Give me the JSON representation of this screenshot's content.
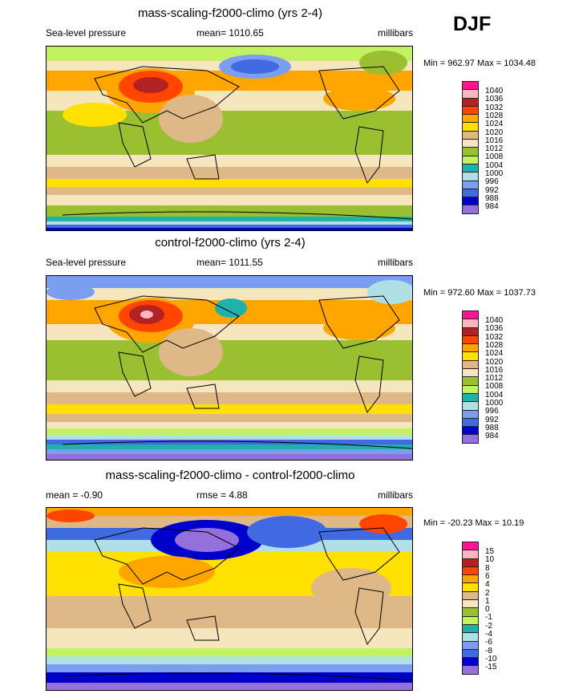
{
  "season": "DJF",
  "colors": [
    "#ff1493",
    "#ffb6c1",
    "#b22222",
    "#ff4500",
    "#ffa500",
    "#ffe000",
    "#deb887",
    "#f5e6c0",
    "#9abf30",
    "#c3f260",
    "#20b2aa",
    "#b0e0e6",
    "#7b9ef0",
    "#4169e1",
    "#0000cd",
    "#9370db"
  ],
  "panels": [
    {
      "title": "mass-scaling-f2000-climo (yrs 2-4)",
      "left_label": "Sea-level pressure",
      "center_label": "mean= 1010.65",
      "units": "millibars",
      "minmax": "Min = 962.97 Max = 1034.48",
      "levels": [
        "1040",
        "1036",
        "1032",
        "1028",
        "1024",
        "1020",
        "1016",
        "1012",
        "1008",
        "1004",
        "1000",
        "996",
        "992",
        "988",
        "984"
      ]
    },
    {
      "title": "control-f2000-climo (yrs 2-4)",
      "left_label": "Sea-level pressure",
      "center_label": "mean= 1011.55",
      "units": "millibars",
      "minmax": "Min = 972.60 Max = 1037.73",
      "levels": [
        "1040",
        "1036",
        "1032",
        "1028",
        "1024",
        "1020",
        "1016",
        "1012",
        "1008",
        "1004",
        "1000",
        "996",
        "992",
        "988",
        "984"
      ]
    },
    {
      "title": "mass-scaling-f2000-climo - control-f2000-climo",
      "left_label": "mean =  -0.90",
      "center_label": "rmse =   4.88",
      "units": "millibars",
      "minmax": "Min = -20.23 Max =  10.19",
      "levels": [
        "15",
        "10",
        "8",
        "6",
        "4",
        "2",
        "1",
        "0",
        "-1",
        "-2",
        "-4",
        "-6",
        "-8",
        "-10",
        "-15"
      ]
    }
  ]
}
